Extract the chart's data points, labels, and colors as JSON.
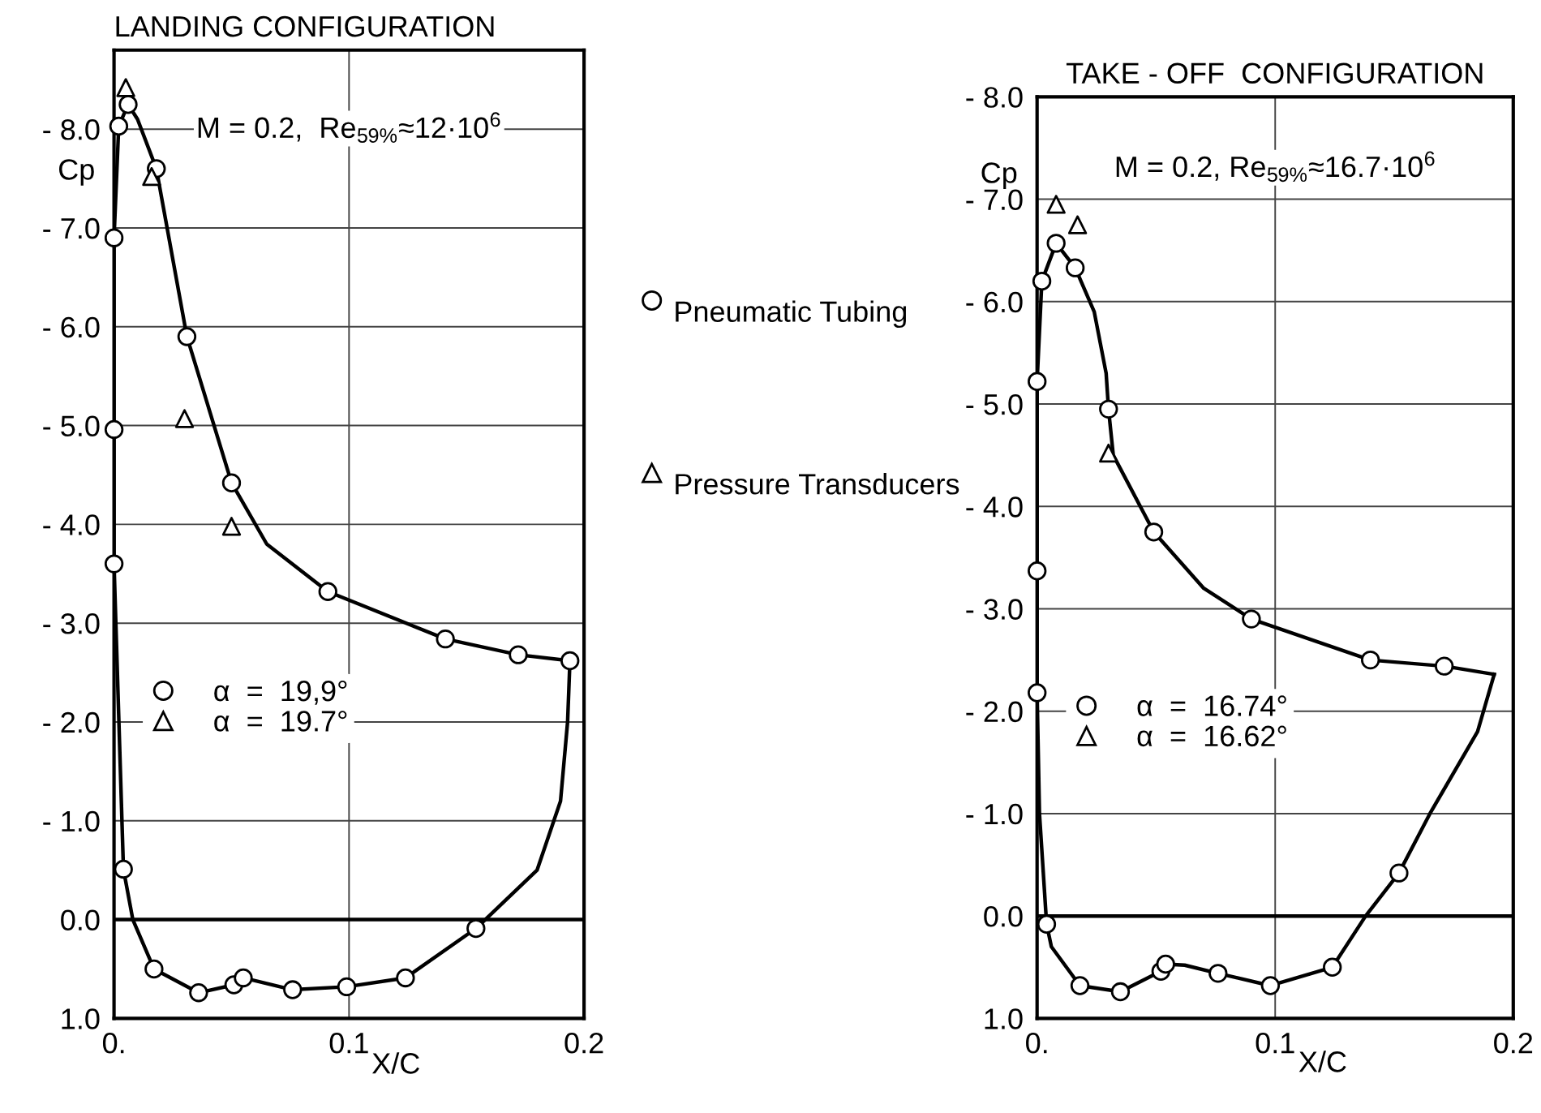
{
  "chart_data": [
    {
      "type": "scatter",
      "title": "LANDING CONFIGURATION",
      "xlabel": "X/C",
      "ylabel": "Cp",
      "annotations": [
        "M = 0.2,  Re$_{59%}$≈12·10$^{6}$",
        "Pneumatic Tubing",
        "Pressure Transducers"
      ],
      "xlim": [
        0,
        0.2
      ],
      "xticks": [
        {
          "value": 0,
          "label": "0."
        },
        {
          "value": 0.1,
          "label": "0.1"
        },
        {
          "value": 0.2,
          "label": "0.2"
        }
      ],
      "ylim": [
        1.0,
        -8.8
      ],
      "yticks": [
        {
          "value": -8,
          "label": "- 8.0"
        },
        {
          "value": -7,
          "label": "- 7.0"
        },
        {
          "value": -6,
          "label": "- 6.0"
        },
        {
          "value": -5,
          "label": "- 5.0"
        },
        {
          "value": -4,
          "label": "- 4.0"
        },
        {
          "value": -3,
          "label": "- 3.0"
        },
        {
          "value": -2,
          "label": "- 2.0"
        },
        {
          "value": -1,
          "label": "- 1.0"
        },
        {
          "value": 0,
          "label": "0.0"
        },
        {
          "value": 1,
          "label": "1.0"
        }
      ],
      "grid": true,
      "legend": "center",
      "ref_lines": [
        {
          "axis": "y",
          "value": 0,
          "color": "#000000"
        }
      ],
      "series": [
        {
          "type": "line",
          "color": "#000000",
          "marker": "none",
          "line_style": "solid",
          "x": [
            0.002,
            0.006,
            0.01,
            0.018,
            0.031,
            0.05,
            0.065,
            0.091,
            0.141,
            0.172,
            0.194
          ],
          "values": [
            -8.03,
            -8.25,
            -8.1,
            -7.6,
            -5.9,
            -4.42,
            -3.8,
            -3.32,
            -2.84,
            -2.68,
            -2.62
          ]
        },
        {
          "type": "line",
          "color": "#000000",
          "marker": "none",
          "line_style": "solid",
          "x": [
            0.002,
            0.0,
            0.0,
            0.0,
            0.004
          ],
          "values": [
            -8.03,
            -6.9,
            -4.96,
            -3.6,
            -0.51
          ]
        },
        {
          "type": "line",
          "color": "#000000",
          "marker": "none",
          "line_style": "solid",
          "x": [
            0.004,
            0.008,
            0.017,
            0.036,
            0.051,
            0.055,
            0.076,
            0.099,
            0.124,
            0.154,
            0.18,
            0.19,
            0.193,
            0.194
          ],
          "values": [
            -0.51,
            0.0,
            0.5,
            0.74,
            0.66,
            0.59,
            0.71,
            0.68,
            0.59,
            0.09,
            -0.5,
            -1.2,
            -2.0,
            -2.62
          ]
        },
        {
          "name": "α  =  19,9°",
          "color": "#000000",
          "marker": "circle",
          "x": [
            0.0,
            0.0,
            0.0,
            0.002,
            0.006,
            0.018,
            0.031,
            0.05,
            0.091,
            0.141,
            0.172,
            0.194,
            0.004,
            0.017,
            0.036,
            0.051,
            0.055,
            0.076,
            0.099,
            0.124,
            0.154
          ],
          "values": [
            -3.6,
            -4.96,
            -6.9,
            -8.03,
            -8.25,
            -7.6,
            -5.9,
            -4.42,
            -3.32,
            -2.84,
            -2.68,
            -2.62,
            -0.51,
            0.5,
            0.74,
            0.66,
            0.59,
            0.71,
            0.68,
            0.59,
            0.09
          ]
        },
        {
          "name": "α  =  19.7°",
          "color": "#000000",
          "marker": "triangle",
          "x": [
            0.005,
            0.016,
            0.03,
            0.05
          ],
          "values": [
            -8.42,
            -7.52,
            -5.07,
            -3.98
          ]
        }
      ]
    },
    {
      "type": "scatter",
      "title": "TAKE - OFF  CONFIGURATION",
      "xlabel": "X/C",
      "ylabel": "Cp",
      "annotations": [
        "M = 0.2, Re$_{59%}$≈16.7·10$^{6}$"
      ],
      "xlim": [
        0,
        0.2
      ],
      "xticks": [
        {
          "value": 0,
          "label": "0."
        },
        {
          "value": 0.1,
          "label": "0.1"
        },
        {
          "value": 0.2,
          "label": "0.2"
        }
      ],
      "ylim": [
        1.0,
        -8.0
      ],
      "yticks": [
        {
          "value": -8,
          "label": "- 8.0"
        },
        {
          "value": -7,
          "label": "- 7.0"
        },
        {
          "value": -6,
          "label": "- 6.0"
        },
        {
          "value": -5,
          "label": "- 5.0"
        },
        {
          "value": -4,
          "label": "- 4.0"
        },
        {
          "value": -3,
          "label": "- 3.0"
        },
        {
          "value": -2,
          "label": "- 2.0"
        },
        {
          "value": -1,
          "label": "- 1.0"
        },
        {
          "value": 0,
          "label": "0.0"
        },
        {
          "value": 1,
          "label": "1.0"
        }
      ],
      "grid": true,
      "legend": "center",
      "ref_lines": [
        {
          "axis": "y",
          "value": 0,
          "color": "#000000"
        }
      ],
      "series": [
        {
          "type": "line",
          "color": "#000000",
          "marker": "none",
          "line_style": "solid",
          "x": [
            0.002,
            0.008,
            0.016,
            0.024,
            0.029,
            0.03,
            0.032,
            0.049,
            0.07,
            0.09,
            0.14,
            0.171,
            0.192
          ],
          "values": [
            -6.2,
            -6.57,
            -6.33,
            -5.9,
            -5.3,
            -4.95,
            -4.5,
            -3.75,
            -3.2,
            -2.9,
            -2.5,
            -2.44,
            -2.36
          ]
        },
        {
          "type": "line",
          "color": "#000000",
          "marker": "none",
          "line_style": "solid",
          "x": [
            0.002,
            0.0,
            0.0,
            0.0,
            0.001,
            0.004
          ],
          "values": [
            -6.2,
            -5.22,
            -3.37,
            -2.18,
            -1.0,
            0.08
          ]
        },
        {
          "type": "line",
          "color": "#000000",
          "marker": "none",
          "line_style": "solid",
          "x": [
            0.004,
            0.006,
            0.018,
            0.035,
            0.052,
            0.054,
            0.062,
            0.076,
            0.098,
            0.124,
            0.138,
            0.152,
            0.165,
            0.185,
            0.192
          ],
          "values": [
            0.08,
            0.3,
            0.68,
            0.74,
            0.54,
            0.47,
            0.48,
            0.56,
            0.68,
            0.5,
            0.0,
            -0.42,
            -1.0,
            -1.8,
            -2.36
          ]
        },
        {
          "name": "α  =  16.74°",
          "color": "#000000",
          "marker": "circle",
          "x": [
            0.002,
            0.008,
            0.016,
            0.0,
            0.03,
            0.049,
            0.0,
            0.0,
            0.09,
            0.14,
            0.171,
            0.004,
            0.018,
            0.035,
            0.052,
            0.054,
            0.076,
            0.098,
            0.124,
            0.152
          ],
          "values": [
            -6.2,
            -6.57,
            -6.33,
            -5.22,
            -4.95,
            -3.75,
            -3.37,
            -2.18,
            -2.9,
            -2.5,
            -2.44,
            0.08,
            0.68,
            0.74,
            0.54,
            0.47,
            0.56,
            0.68,
            0.5,
            -0.42
          ]
        },
        {
          "name": "α  =  16.62°",
          "color": "#000000",
          "marker": "triangle",
          "x": [
            0.008,
            0.017,
            0.03
          ],
          "values": [
            -6.95,
            -6.75,
            -4.52
          ]
        }
      ]
    }
  ]
}
